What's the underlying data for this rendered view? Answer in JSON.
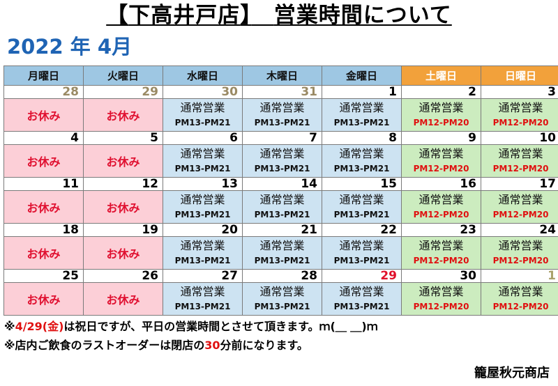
{
  "title": {
    "bracket_open": "【",
    "store": "下高井戸店",
    "bracket_close": "】",
    "subject": "営業時間について"
  },
  "month_label": "2022 年 4月",
  "headers": [
    "月曜日",
    "火曜日",
    "水曜日",
    "木曜日",
    "金曜日",
    "土曜日",
    "日曜日"
  ],
  "closed_label": "お休み",
  "service_label": "通常営業",
  "weekday_hours": "PM13-PM21",
  "weekend_hours": "PM12-PM20",
  "weeks": [
    [
      "28",
      "29",
      "30",
      "31",
      "1",
      "2",
      "3"
    ],
    [
      "4",
      "5",
      "6",
      "7",
      "8",
      "9",
      "10"
    ],
    [
      "11",
      "12",
      "13",
      "14",
      "15",
      "16",
      "17"
    ],
    [
      "18",
      "19",
      "20",
      "21",
      "22",
      "23",
      "24"
    ],
    [
      "25",
      "26",
      "27",
      "28",
      "29",
      "30",
      "1"
    ]
  ],
  "colors": {
    "weekday_header": "#9ec7e3",
    "weekend_header": "#f2a13b",
    "closed_cell": "#fccfd7",
    "weekday_cell": "#cde3f2",
    "weekend_cell": "#ccecbf",
    "month_label": "#1f64b4",
    "emphasis_red": "#e01010"
  },
  "notes": {
    "line1": {
      "prefix": "※",
      "date": "4/29(金)",
      "text": "は祝日ですが、平日の営業時間とさせて頂きます。ｍ(＿ ＿)ｍ"
    },
    "line2": {
      "text_before": "※店内ご飲食のラストオーダーは閉店の",
      "minutes": "30",
      "text_after": "分前になります。"
    }
  },
  "store_name": "籠屋秋元商店"
}
